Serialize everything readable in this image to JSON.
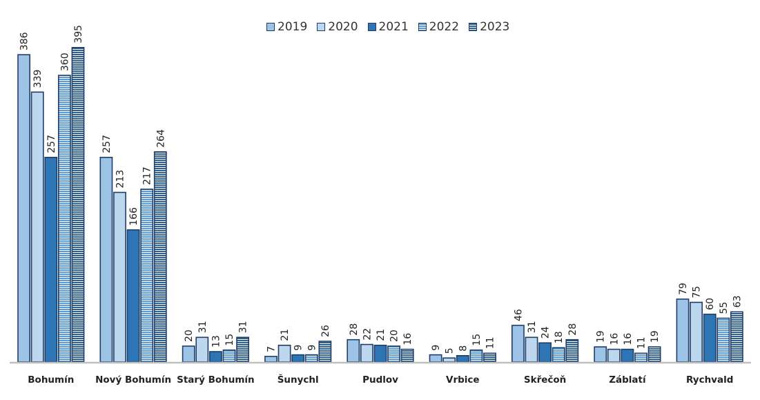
{
  "chart_data": {
    "type": "bar",
    "categories": [
      "Bohumín",
      "Nový Bohumín",
      "Starý Bohumín",
      "Šunychl",
      "Pudlov",
      "Vrbice",
      "Skřečoň",
      "Záblatí",
      "Rychvald"
    ],
    "series": [
      {
        "name": "2019",
        "values": [
          386,
          257,
          20,
          7,
          28,
          9,
          46,
          19,
          79
        ],
        "color": "#9dc3e6",
        "pattern": "solid"
      },
      {
        "name": "2020",
        "values": [
          339,
          213,
          31,
          21,
          22,
          5,
          31,
          16,
          75
        ],
        "color": "#bdd7ee",
        "pattern": "solid"
      },
      {
        "name": "2021",
        "values": [
          257,
          166,
          13,
          9,
          21,
          8,
          24,
          16,
          60
        ],
        "color": "#2e75b6",
        "pattern": "solid"
      },
      {
        "name": "2022",
        "values": [
          360,
          217,
          15,
          9,
          20,
          15,
          18,
          11,
          55
        ],
        "color": "#5b9bd5",
        "pattern": "horizontal-stripes"
      },
      {
        "name": "2023",
        "values": [
          395,
          264,
          31,
          26,
          16,
          11,
          28,
          19,
          63
        ],
        "color": "#2e5f8f",
        "pattern": "horizontal-stripes"
      }
    ],
    "ylim": [
      0,
      420
    ],
    "grid": false,
    "legend_position": "top-center"
  }
}
